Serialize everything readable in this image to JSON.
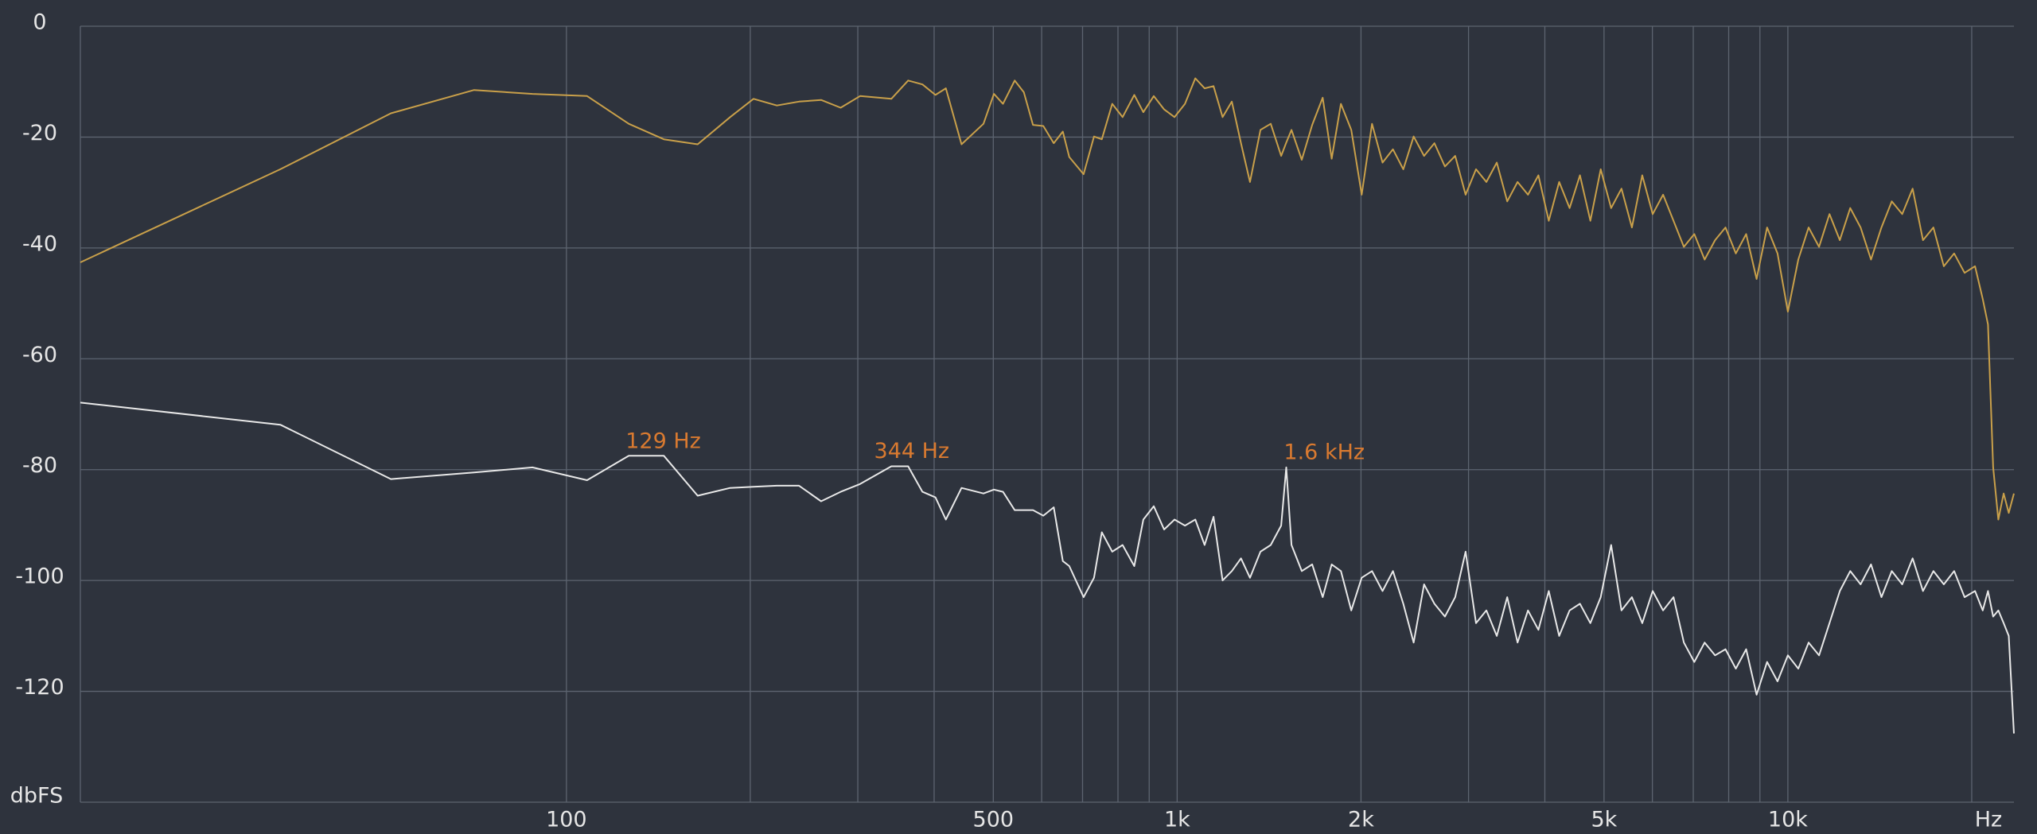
{
  "chart_data": {
    "type": "line",
    "xscale": "log",
    "xlabel": "Hz",
    "ylabel": "dbFS",
    "xlim": [
      16,
      23450
    ],
    "ylim": [
      -140,
      0
    ],
    "xticks": [
      100,
      500,
      {
        "value": 1000,
        "label": "1k"
      },
      {
        "value": 2000,
        "label": "2k"
      },
      {
        "value": 5000,
        "label": "5k"
      },
      {
        "value": 10000,
        "label": "10k"
      }
    ],
    "x_minor_gridlines": [
      200,
      300,
      400,
      600,
      700,
      800,
      900,
      3000,
      4000,
      6000,
      7000,
      8000,
      9000,
      20000
    ],
    "yticks": [
      0,
      -20,
      -40,
      -60,
      -80,
      -100,
      -120
    ],
    "grid": true,
    "annotations": [
      {
        "text": "129 Hz",
        "x": 125,
        "y": -75,
        "color": "#d97a30"
      },
      {
        "text": "344 Hz",
        "x": 319,
        "y": -76.8,
        "color": "#d97a30"
      },
      {
        "text": "1.6  kHz",
        "x": 1495,
        "y": -77,
        "color": "#d97a30"
      }
    ],
    "x": [
      16.0,
      34.0,
      51.6,
      70.6,
      88.0,
      108.1,
      126.5,
      144.4,
      164.0,
      185.4,
      202.5,
      221.1,
      240.4,
      261.2,
      281.2,
      302.6,
      340.4,
      362.7,
      382.8,
      402.0,
      418.1,
      443.5,
      481.9,
      501.2,
      518.6,
      542.0,
      561.0,
      580.6,
      603.8,
      627.9,
      649.8,
      665.9,
      702.8,
      730.9,
      752.7,
      782.8,
      814.0,
      850.7,
      880.3,
      915.5,
      952.0,
      990.1,
      1030,
      1071,
      1109,
      1147,
      1187,
      1229,
      1272,
      1316,
      1369,
      1423,
      1480,
      1509,
      1539,
      1600,
      1664,
      1731,
      1791,
      1854,
      1928,
      2005,
      2085,
      2169,
      2256,
      2346,
      2439,
      2537,
      2638,
      2744,
      2853,
      2967,
      3086,
      3209,
      3337,
      3471,
      3609,
      3754,
      3904,
      4060,
      4222,
      4391,
      4566,
      4749,
      4938,
      5136,
      5341,
      5554,
      5776,
      6007,
      6247,
      6497,
      6756,
      7026,
      7307,
      7599,
      7903,
      8218,
      8546,
      8888,
      9247,
      9616,
      10000,
      10400,
      10815,
      11248,
      11697,
      12164,
      12650,
      13155,
      13682,
      14229,
      14797,
      15388,
      16005,
      16645,
      17310,
      18001,
      18720,
      19470,
      20248,
      20850,
      21263,
      21684,
      22113,
      22560,
      23000,
      23450
    ],
    "series": [
      {
        "color": "#c9a04a",
        "values": [
          -42.6,
          -25.8,
          -15.7,
          -11.5,
          -12.2,
          -12.6,
          -17.6,
          -20.4,
          -21.3,
          -16.4,
          -13.1,
          -14.3,
          -13.6,
          -13.3,
          -14.7,
          -12.6,
          -13.1,
          -9.8,
          -10.5,
          -12.4,
          -11.2,
          -21.3,
          -17.6,
          -12.2,
          -14,
          -9.8,
          -11.9,
          -17.8,
          -18,
          -21.1,
          -19,
          -23.6,
          -26.7,
          -19.9,
          -20.4,
          -14,
          -16.4,
          -12.4,
          -15.5,
          -12.6,
          -15,
          -16.4,
          -14,
          -9.4,
          -11.2,
          -10.8,
          -16.4,
          -13.6,
          -21.1,
          -28.1,
          -18.7,
          -17.6,
          -23.4,
          -21,
          -18.7,
          -24.1,
          -17.8,
          -12.9,
          -23.9,
          -14,
          -18.7,
          -30.4,
          -17.6,
          -24.6,
          -22.2,
          -25.8,
          -19.9,
          -23.4,
          -21.1,
          -25.3,
          -23.4,
          -30.4,
          -25.8,
          -28.1,
          -24.6,
          -31.6,
          -28.1,
          -30.4,
          -26.9,
          -35.1,
          -28.1,
          -32.8,
          -26.9,
          -35.1,
          -25.8,
          -32.8,
          -29.3,
          -36.3,
          -26.9,
          -33.9,
          -30.4,
          -35.1,
          -39.8,
          -37.5,
          -42.1,
          -38.6,
          -36.3,
          -41,
          -37.5,
          -45.6,
          -36.3,
          -41,
          -51.5,
          -42.1,
          -36.3,
          -39.8,
          -33.9,
          -38.6,
          -32.8,
          -36.3,
          -42.1,
          -36.3,
          -31.6,
          -33.9,
          -29.3,
          -38.6,
          -36.3,
          -43.3,
          -41,
          -44.5,
          -43.3,
          -49.2,
          -53.8,
          -79.6,
          -89,
          -84.3,
          -87.8,
          -84.3
        ]
      },
      {
        "color": "#e8e8e8",
        "values": [
          -67.9,
          -71.9,
          -81.7,
          -80.5,
          -79.6,
          -81.9,
          -77.5,
          -77.5,
          -84.7,
          -83.3,
          -83.1,
          -82.9,
          -82.9,
          -85.7,
          -84,
          -82.6,
          -79.4,
          -79.4,
          -84,
          -85,
          -89,
          -83.3,
          -84.3,
          -83.6,
          -84,
          -87.3,
          -87.3,
          -87.3,
          -88.3,
          -86.8,
          -96.5,
          -97.4,
          -103,
          -99.5,
          -91.3,
          -94.8,
          -93.6,
          -97.4,
          -89,
          -86.6,
          -90.8,
          -89,
          -90.1,
          -89,
          -93.6,
          -88.5,
          -100,
          -98.3,
          -96,
          -99.5,
          -94.8,
          -93.6,
          -90.1,
          -79.6,
          -93.6,
          -98.3,
          -97.1,
          -103,
          -97.1,
          -98.3,
          -105.4,
          -99.5,
          -98.3,
          -101.9,
          -98.3,
          -104.2,
          -111.2,
          -100.7,
          -104.2,
          -106.5,
          -103,
          -94.8,
          -107.7,
          -105.4,
          -110,
          -103,
          -111.2,
          -105.4,
          -108.9,
          -101.9,
          -110,
          -105.4,
          -104.2,
          -107.7,
          -103,
          -93.6,
          -105.4,
          -103,
          -107.7,
          -101.9,
          -105.4,
          -103,
          -111.2,
          -114.7,
          -111.2,
          -113.5,
          -112.4,
          -115.9,
          -112.4,
          -120.6,
          -114.7,
          -118.2,
          -113.5,
          -115.9,
          -111.2,
          -113.5,
          -107.7,
          -101.9,
          -98.3,
          -100.7,
          -97.1,
          -103,
          -98.3,
          -100.7,
          -96,
          -101.9,
          -98.3,
          -100.7,
          -98.3,
          -103,
          -101.9,
          -105.4,
          -101.9,
          -106.5,
          -105.4,
          -107.7,
          -110,
          -127.6
        ]
      }
    ]
  }
}
